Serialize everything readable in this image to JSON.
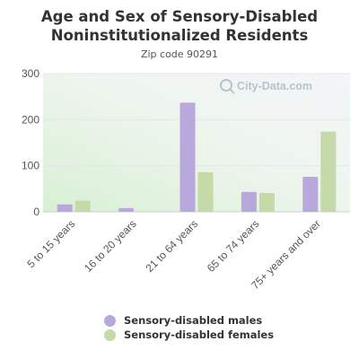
{
  "colors": {
    "males": "#b9a8db",
    "females": "#c6d9a8",
    "grid": "#e6e6e6",
    "axis_text": "#555555"
  },
  "watermark": "City-Data.com",
  "chart_data": {
    "type": "bar",
    "title": "Age and Sex of Sensory-Disabled Noninstitutionalized Residents",
    "title_lines": [
      "Age and Sex of Sensory-Disabled",
      "Noninstitutionalized Residents"
    ],
    "subtitle": "Zip code 90291",
    "xlabel": "",
    "ylabel": "",
    "ylim": [
      0,
      300
    ],
    "yticks": [
      0,
      100,
      200,
      300
    ],
    "grid": true,
    "legend_position": "bottom",
    "categories": [
      "5 to 15 years",
      "16 to 20 years",
      "21 to 64 years",
      "65 to 74 years",
      "75+ years and over"
    ],
    "series": [
      {
        "name": "Sensory-disabled males",
        "values": [
          16,
          8,
          237,
          43,
          76
        ]
      },
      {
        "name": "Sensory-disabled females",
        "values": [
          24,
          0,
          86,
          41,
          174
        ]
      }
    ]
  }
}
